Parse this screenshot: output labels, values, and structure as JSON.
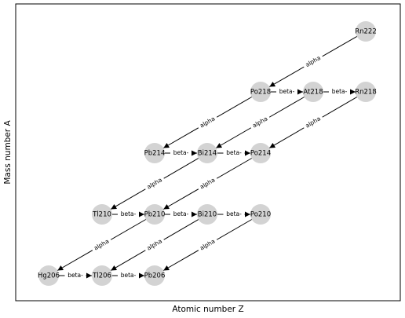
{
  "axes": {
    "x_label": "Atomic number Z",
    "y_label": "Mass number A"
  },
  "nodes": [
    "Rn222",
    "Po218",
    "At218",
    "Rn218",
    "Pb214",
    "Bi214",
    "Po214",
    "Tl210",
    "Pb210",
    "Bi210",
    "Po210",
    "Hg206",
    "Tl206",
    "Pb206"
  ],
  "edges": [
    "alpha",
    "alpha",
    "alpha",
    "alpha",
    "alpha",
    "alpha",
    "alpha",
    "alpha",
    "alpha",
    "beta-",
    "beta-",
    "beta-",
    "beta-",
    "beta-",
    "beta-",
    "beta-",
    "beta-",
    "beta-"
  ]
}
